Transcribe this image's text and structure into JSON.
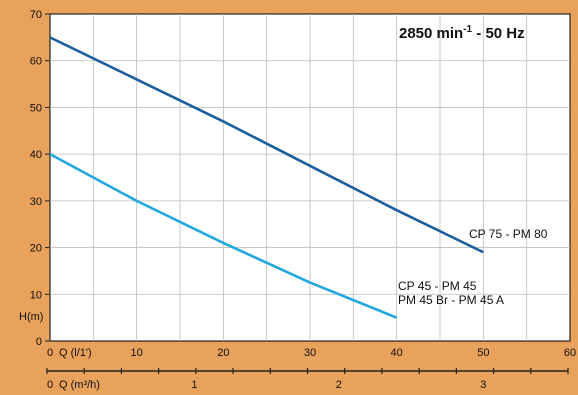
{
  "chart_data": {
    "type": "line",
    "title_main": "2850 min",
    "title_sup": "-1",
    "title_rest": " - 50 Hz",
    "ylabel": "H(m)",
    "y_ticks": [
      0,
      10,
      20,
      30,
      40,
      50,
      60,
      70
    ],
    "ylim": [
      0,
      70
    ],
    "x_ticks": [
      0,
      10,
      20,
      30,
      40,
      50,
      60
    ],
    "xlim": [
      0,
      60
    ],
    "x_unit_label": "Q (l/1')",
    "x2_unit_label": "Q (m³/h)",
    "x2_ticks": [
      0,
      1,
      2,
      3
    ],
    "x2_ticks_lpm": [
      0,
      16.67,
      33.33,
      50
    ],
    "grid": true,
    "series": [
      {
        "name": "CP 75 - PM 80",
        "color": "#1B5E9E",
        "x": [
          0,
          10,
          20,
          30,
          40,
          50
        ],
        "y": [
          65,
          56,
          47,
          37.5,
          28,
          19
        ]
      },
      {
        "name_lines": [
          "CP 45 - PM 45",
          "PM 45 Br - PM 45 A"
        ],
        "color": "#21A7E0",
        "x": [
          0,
          10,
          20,
          30,
          40
        ],
        "y": [
          40,
          30,
          21,
          12.5,
          5
        ]
      }
    ]
  }
}
